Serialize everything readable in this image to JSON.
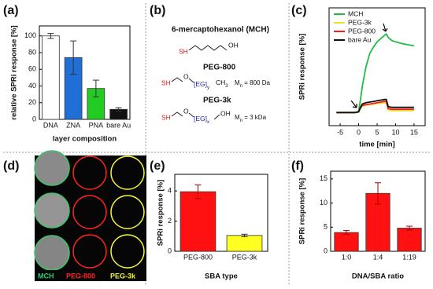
{
  "panel_labels": [
    "(a)",
    "(b)",
    "(c)",
    "(d)",
    "(e)",
    "(f)"
  ],
  "structures": {
    "mch_title": "6-mercaptohexanol (MCH)",
    "peg800_title": "PEG-800",
    "peg3k_title": "PEG-3k",
    "sh": "SH",
    "oh": "OH",
    "o": "O",
    "eg": "[EG]",
    "y": "y",
    "x": "x",
    "ch": "CH",
    "three": "3",
    "m": "M",
    "n": "n",
    "mn800": " = 800 Da",
    "mn3k": " = 3 kDa"
  },
  "image_labels": [
    {
      "text": "MCH",
      "color": "#2ecc71"
    },
    {
      "text": "PEG-800",
      "color": "#ff2222"
    },
    {
      "text": "PEG-3k",
      "color": "#f5f53a"
    }
  ],
  "chart_data": [
    {
      "type": "bar",
      "categories": [
        "DNA",
        "ZNA",
        "PNA",
        "bare Au"
      ],
      "values": [
        100,
        74,
        37,
        12
      ],
      "errors": [
        3,
        20,
        10,
        2
      ],
      "colors": [
        "#ffffff",
        "#1f6fd6",
        "#22cc22",
        "#111111"
      ],
      "ylim": [
        0,
        112
      ],
      "yticks": [
        0,
        20,
        40,
        60,
        80,
        100
      ],
      "ylabel": "relative SPRi response [%]",
      "xlabel": "layer composition"
    },
    {
      "type": "line",
      "x": [
        -6,
        -4,
        -2,
        -1,
        0,
        0.5,
        1,
        2,
        3,
        4,
        5,
        6,
        7,
        7.5,
        8,
        9,
        10,
        12,
        14,
        15
      ],
      "series": [
        {
          "name": "MCH",
          "color": "#22bb44",
          "values": [
            0,
            0,
            0,
            0,
            0.2,
            2,
            4,
            7,
            9,
            10,
            10.8,
            11.3,
            11.8,
            12,
            11.5,
            11,
            10.8,
            10.5,
            10.3,
            10.2
          ]
        },
        {
          "name": "PEG-3k",
          "color": "#f0e020",
          "values": [
            0,
            0,
            0,
            0,
            0.1,
            0.6,
            1,
            1.1,
            1.2,
            1.3,
            1.4,
            1.4,
            1.5,
            1.5,
            0.4,
            0.3,
            0.3,
            0.3,
            0.3,
            0.3
          ]
        },
        {
          "name": "PEG-800",
          "color": "#ee2222",
          "values": [
            0,
            0,
            0,
            0,
            0.1,
            0.7,
            1.1,
            1.2,
            1.3,
            1.4,
            1.5,
            1.6,
            1.7,
            1.7,
            0.6,
            0.5,
            0.5,
            0.5,
            0.5,
            0.5
          ]
        },
        {
          "name": "bare Au",
          "color": "#111111",
          "values": [
            0,
            0,
            0,
            0,
            0.1,
            0.8,
            1.3,
            1.5,
            1.6,
            1.7,
            1.8,
            1.9,
            2,
            2,
            0.9,
            0.8,
            0.8,
            0.8,
            0.8,
            0.8
          ]
        }
      ],
      "xlim": [
        -8,
        18
      ],
      "xticks": [
        -5,
        0,
        5,
        10,
        15
      ],
      "ylim": [
        -2,
        16
      ],
      "ylabel": "SPRi  response  [%]",
      "xlabel": "time [min]",
      "legend": "upper left"
    },
    {
      "type": "bar",
      "categories": [
        "PEG-800",
        "PEG-3k"
      ],
      "values": [
        3.95,
        1.05
      ],
      "errors": [
        0.45,
        0.08
      ],
      "colors": [
        "#ff1111",
        "#ffff22"
      ],
      "ylim": [
        0,
        5.1
      ],
      "yticks": [
        0,
        2,
        4
      ],
      "ylabel": "SPRi  response  [%]",
      "xlabel": "SBA type"
    },
    {
      "type": "bar",
      "categories": [
        "1:0",
        "1:4",
        "1:19"
      ],
      "values": [
        3.9,
        12,
        4.8
      ],
      "errors": [
        0.4,
        2.2,
        0.4
      ],
      "colors": [
        "#ff1111",
        "#ff1111",
        "#ff1111"
      ],
      "ylim": [
        0,
        16.6
      ],
      "yticks": [
        0,
        5,
        10,
        15
      ],
      "ylabel": "SPRi  response  [%]",
      "xlabel": "DNA/SBA ratio"
    }
  ]
}
